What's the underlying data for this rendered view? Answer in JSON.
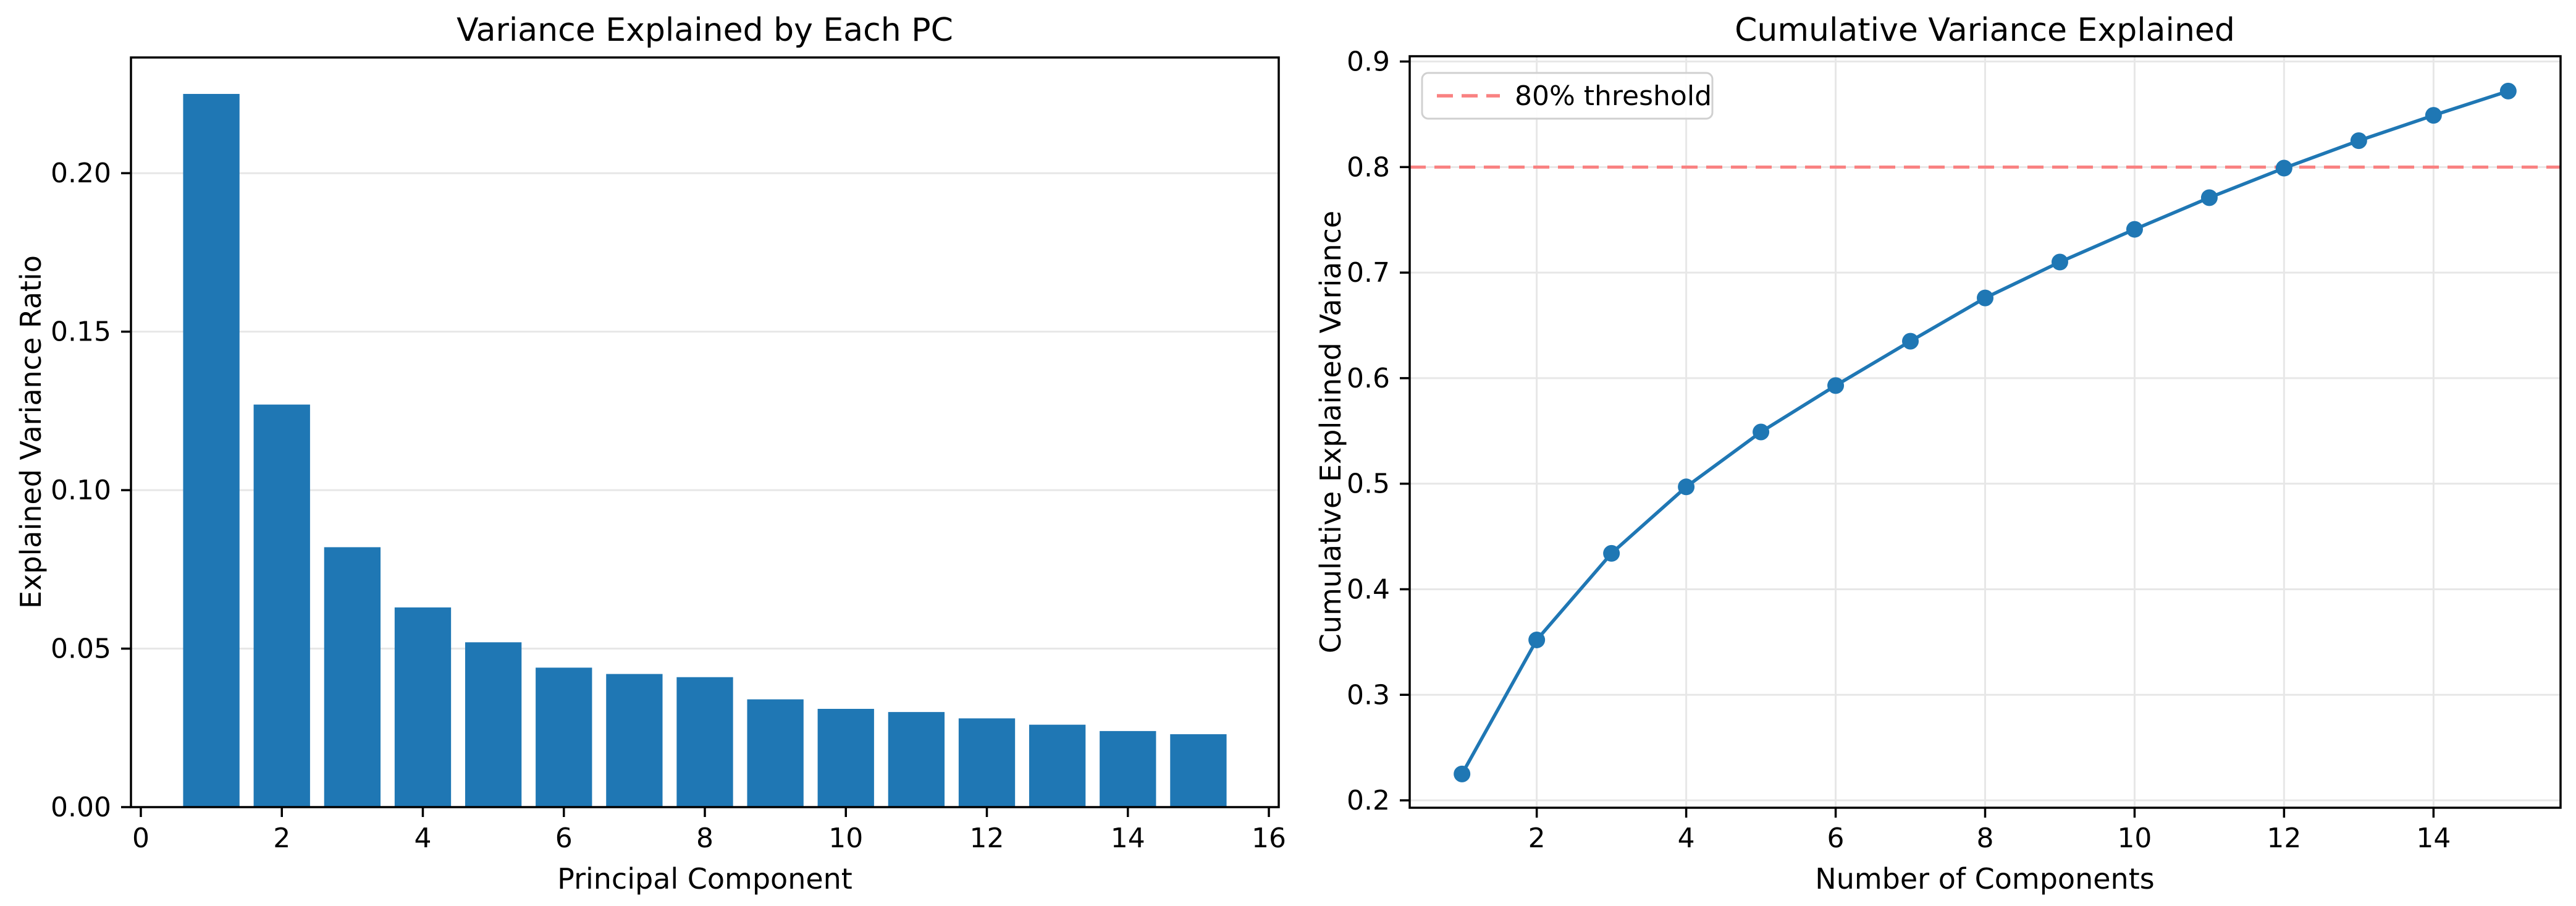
{
  "figure": {
    "background": "#ffffff",
    "text_color": "#000000",
    "spine_color": "#000000",
    "grid_color": "#e7e7e7",
    "accent_blue": "#1f77b4",
    "threshold_red": "#f98181",
    "legend_border": "#d0d0d0"
  },
  "chart_data": [
    {
      "type": "bar",
      "title": "Variance Explained by Each PC",
      "xlabel": "Principal Component",
      "ylabel": "Explained Variance Ratio",
      "categories": [
        1,
        2,
        3,
        4,
        5,
        6,
        7,
        8,
        9,
        10,
        11,
        12,
        13,
        14,
        15
      ],
      "values": [
        0.225,
        0.127,
        0.082,
        0.063,
        0.052,
        0.044,
        0.042,
        0.041,
        0.034,
        0.031,
        0.03,
        0.028,
        0.026,
        0.024,
        0.023
      ],
      "bar_color": "#1f77b4",
      "bar_width": 0.8,
      "xlim": [
        -0.14,
        16.14
      ],
      "ylim": [
        0,
        0.2365
      ],
      "xticks": [
        0,
        2,
        4,
        6,
        8,
        10,
        12,
        14,
        16
      ],
      "xtick_labels": [
        "0",
        "2",
        "4",
        "6",
        "8",
        "10",
        "12",
        "14",
        "16"
      ],
      "yticks": [
        0,
        0.05,
        0.1,
        0.15,
        0.2
      ],
      "ytick_labels": [
        "0.00",
        "0.05",
        "0.10",
        "0.15",
        "0.20"
      ],
      "grid": "y",
      "legend": null
    },
    {
      "type": "line",
      "title": "Cumulative Variance Explained",
      "xlabel": "Number of Components",
      "ylabel": "Cumulative Explained Variance",
      "x": [
        1,
        2,
        3,
        4,
        5,
        6,
        7,
        8,
        9,
        10,
        11,
        12,
        13,
        14,
        15
      ],
      "values": [
        0.225,
        0.352,
        0.434,
        0.497,
        0.549,
        0.593,
        0.635,
        0.676,
        0.71,
        0.741,
        0.771,
        0.799,
        0.825,
        0.849,
        0.872
      ],
      "line_color": "#1f77b4",
      "marker": "circle",
      "xlim": [
        0.3,
        15.7
      ],
      "ylim": [
        0.193,
        0.905
      ],
      "xticks": [
        2,
        4,
        6,
        8,
        10,
        12,
        14
      ],
      "xtick_labels": [
        "2",
        "4",
        "6",
        "8",
        "10",
        "12",
        "14"
      ],
      "yticks": [
        0.2,
        0.3,
        0.4,
        0.5,
        0.6,
        0.7,
        0.8,
        0.9
      ],
      "ytick_labels": [
        "0.2",
        "0.3",
        "0.4",
        "0.5",
        "0.6",
        "0.7",
        "0.8",
        "0.9"
      ],
      "grid": "both",
      "threshold": {
        "value": 0.8,
        "label": "80% threshold",
        "color": "#f98181",
        "linestyle": "dashed"
      },
      "legend": {
        "position": "upper left",
        "entries": [
          {
            "label": "80% threshold",
            "color": "#f98181",
            "linestyle": "dashed"
          }
        ]
      }
    }
  ]
}
